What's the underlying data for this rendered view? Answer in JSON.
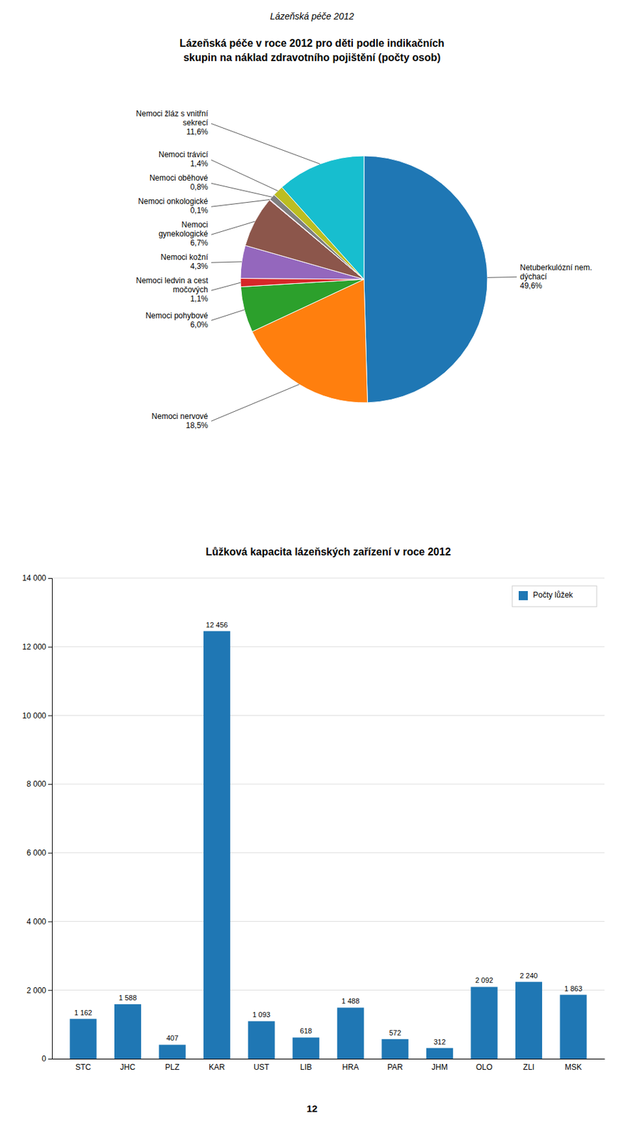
{
  "title": "Lázeňská péče 2012",
  "annotations": [
    "12"
  ],
  "chart_data": [
    {
      "type": "pie",
      "title": "Lázeňská péče v roce 2012 pro děti podle indikačních",
      "subtitle": "skupin na náklad zdravotního pojištění (počty osob)",
      "categories": [
        "Netuberkulózní nem.\ndýchací",
        "Nemoci nervové",
        "Nemoci pohybové",
        "Nemoci ledvin a cest\nmočových",
        "Nemoci kožní",
        "Nemoci\ngynekologické",
        "Nemoci onkologické",
        "Nemoci oběhové",
        "Nemoci trávicí",
        "Nemoci žláz s vnitřní\nsekrecí"
      ],
      "values": [
        49.6,
        18.5,
        6.0,
        1.1,
        4.3,
        6.7,
        0.1,
        0.8,
        1.4,
        11.6
      ],
      "value_labels": [
        "49,6%",
        "18,5%",
        "6,0%",
        "1,1%",
        "4,3%",
        "6,7%",
        "0,1%",
        "0,8%",
        "1,4%",
        "11,6%"
      ],
      "data_labels": true
    },
    {
      "type": "bar",
      "title": "Lůžková kapacita lázeňských zařízení v roce 2012",
      "categories": [
        "STC",
        "JHC",
        "PLZ",
        "KAR",
        "UST",
        "LIB",
        "HRA",
        "PAR",
        "JHM",
        "OLO",
        "ZLI",
        "MSK"
      ],
      "series": [
        {
          "name": "Počty lůžek",
          "values": [
            1162,
            1588,
            407,
            12456,
            1093,
            618,
            1488,
            572,
            312,
            2092,
            2240,
            1863
          ],
          "value_labels": [
            "1 162",
            "1 588",
            "407",
            "12 456",
            "1 093",
            "618",
            "1 488",
            "572",
            "312",
            "2 092",
            "2 240",
            "1 863"
          ]
        }
      ],
      "ylim": [
        0,
        14000
      ],
      "yticks": [
        0,
        {
          "value": 2000,
          "label": "2 000"
        },
        {
          "value": 4000,
          "label": "4 000"
        },
        {
          "value": 6000,
          "label": "6 000"
        },
        {
          "value": 8000,
          "label": "8 000"
        },
        {
          "value": 10000,
          "label": "10 000"
        },
        {
          "value": 12000,
          "label": "12 000"
        },
        {
          "value": 14000,
          "label": "14 000"
        }
      ],
      "grid": true,
      "legend": "upper right",
      "data_labels": true
    }
  ]
}
